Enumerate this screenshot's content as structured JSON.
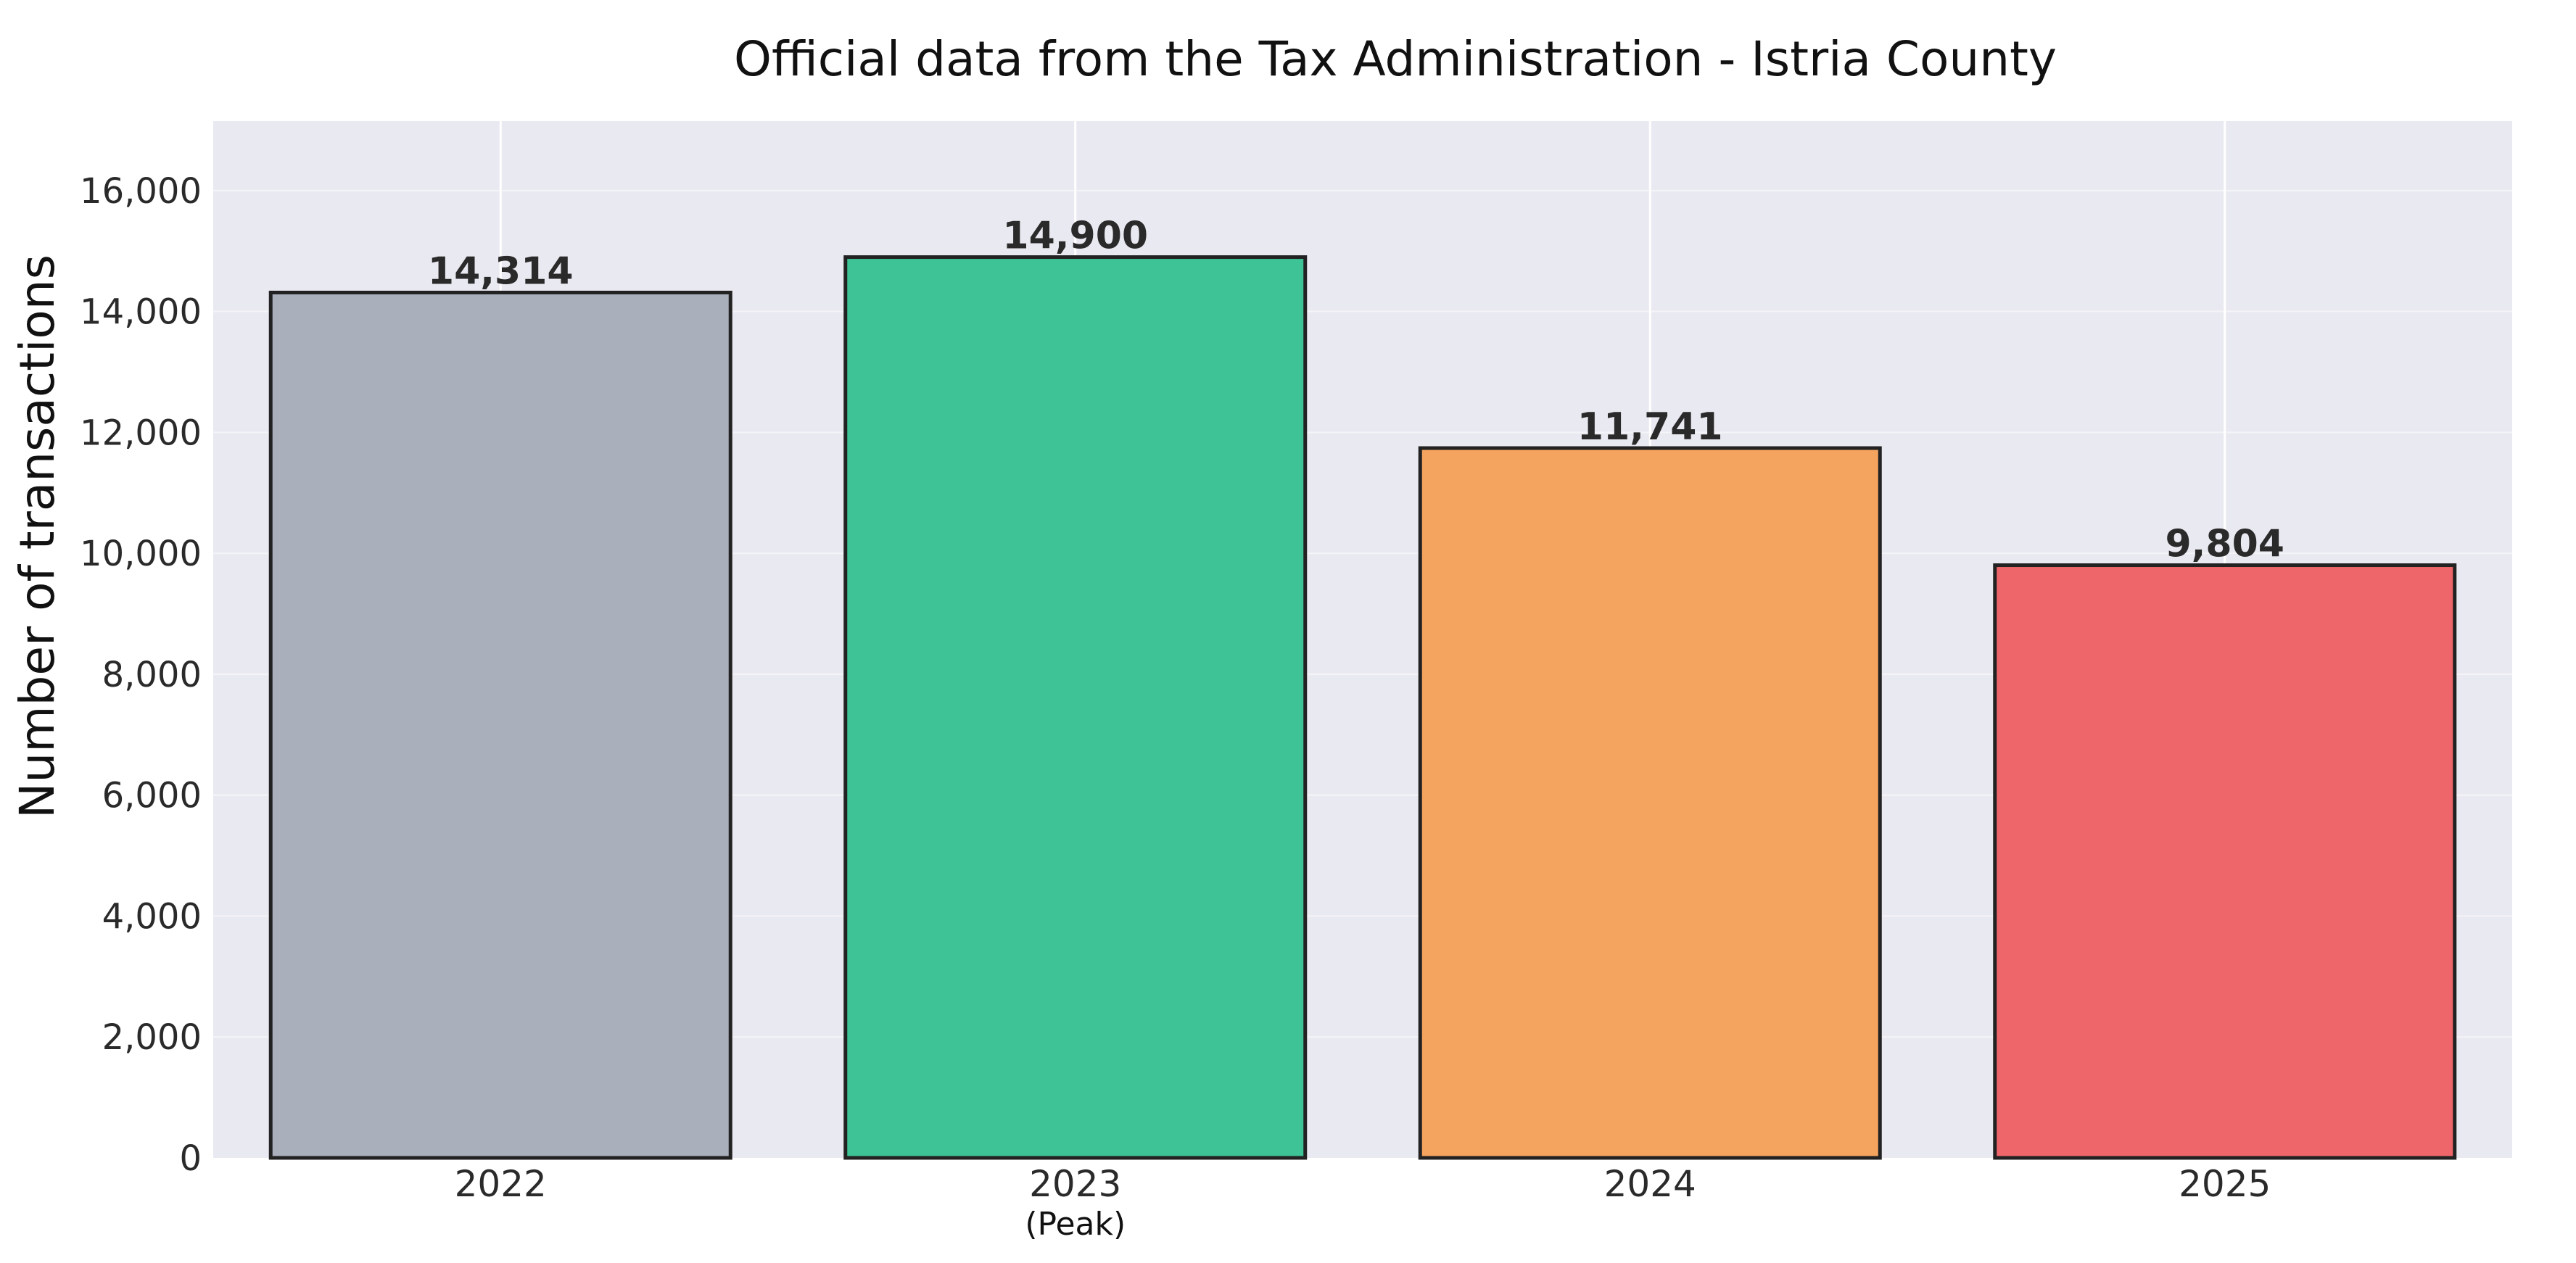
{
  "chart_data": {
    "type": "bar",
    "title": "Official data from the Tax Administration - Istria County",
    "ylabel": "Number of transactions",
    "xlabel": "",
    "categories": [
      "2022",
      "2023",
      "2024",
      "2025"
    ],
    "values": [
      14314,
      14900,
      11741,
      9804
    ],
    "value_labels": [
      "14,314",
      "14,900",
      "11,741",
      "9,804"
    ],
    "bar_colors": [
      "#a9afbb",
      "#3dc396",
      "#f5a45f",
      "#ee6669"
    ],
    "sublabels": [
      "",
      "(Peak)",
      "",
      ""
    ],
    "ylim": [
      0,
      17150
    ],
    "yticks": [
      0,
      2000,
      4000,
      6000,
      8000,
      10000,
      12000,
      14000,
      16000
    ],
    "ytick_labels": [
      "0",
      "2,000",
      "4,000",
      "6,000",
      "8,000",
      "10,000",
      "12,000",
      "14,000",
      "16,000"
    ],
    "grid": true
  }
}
